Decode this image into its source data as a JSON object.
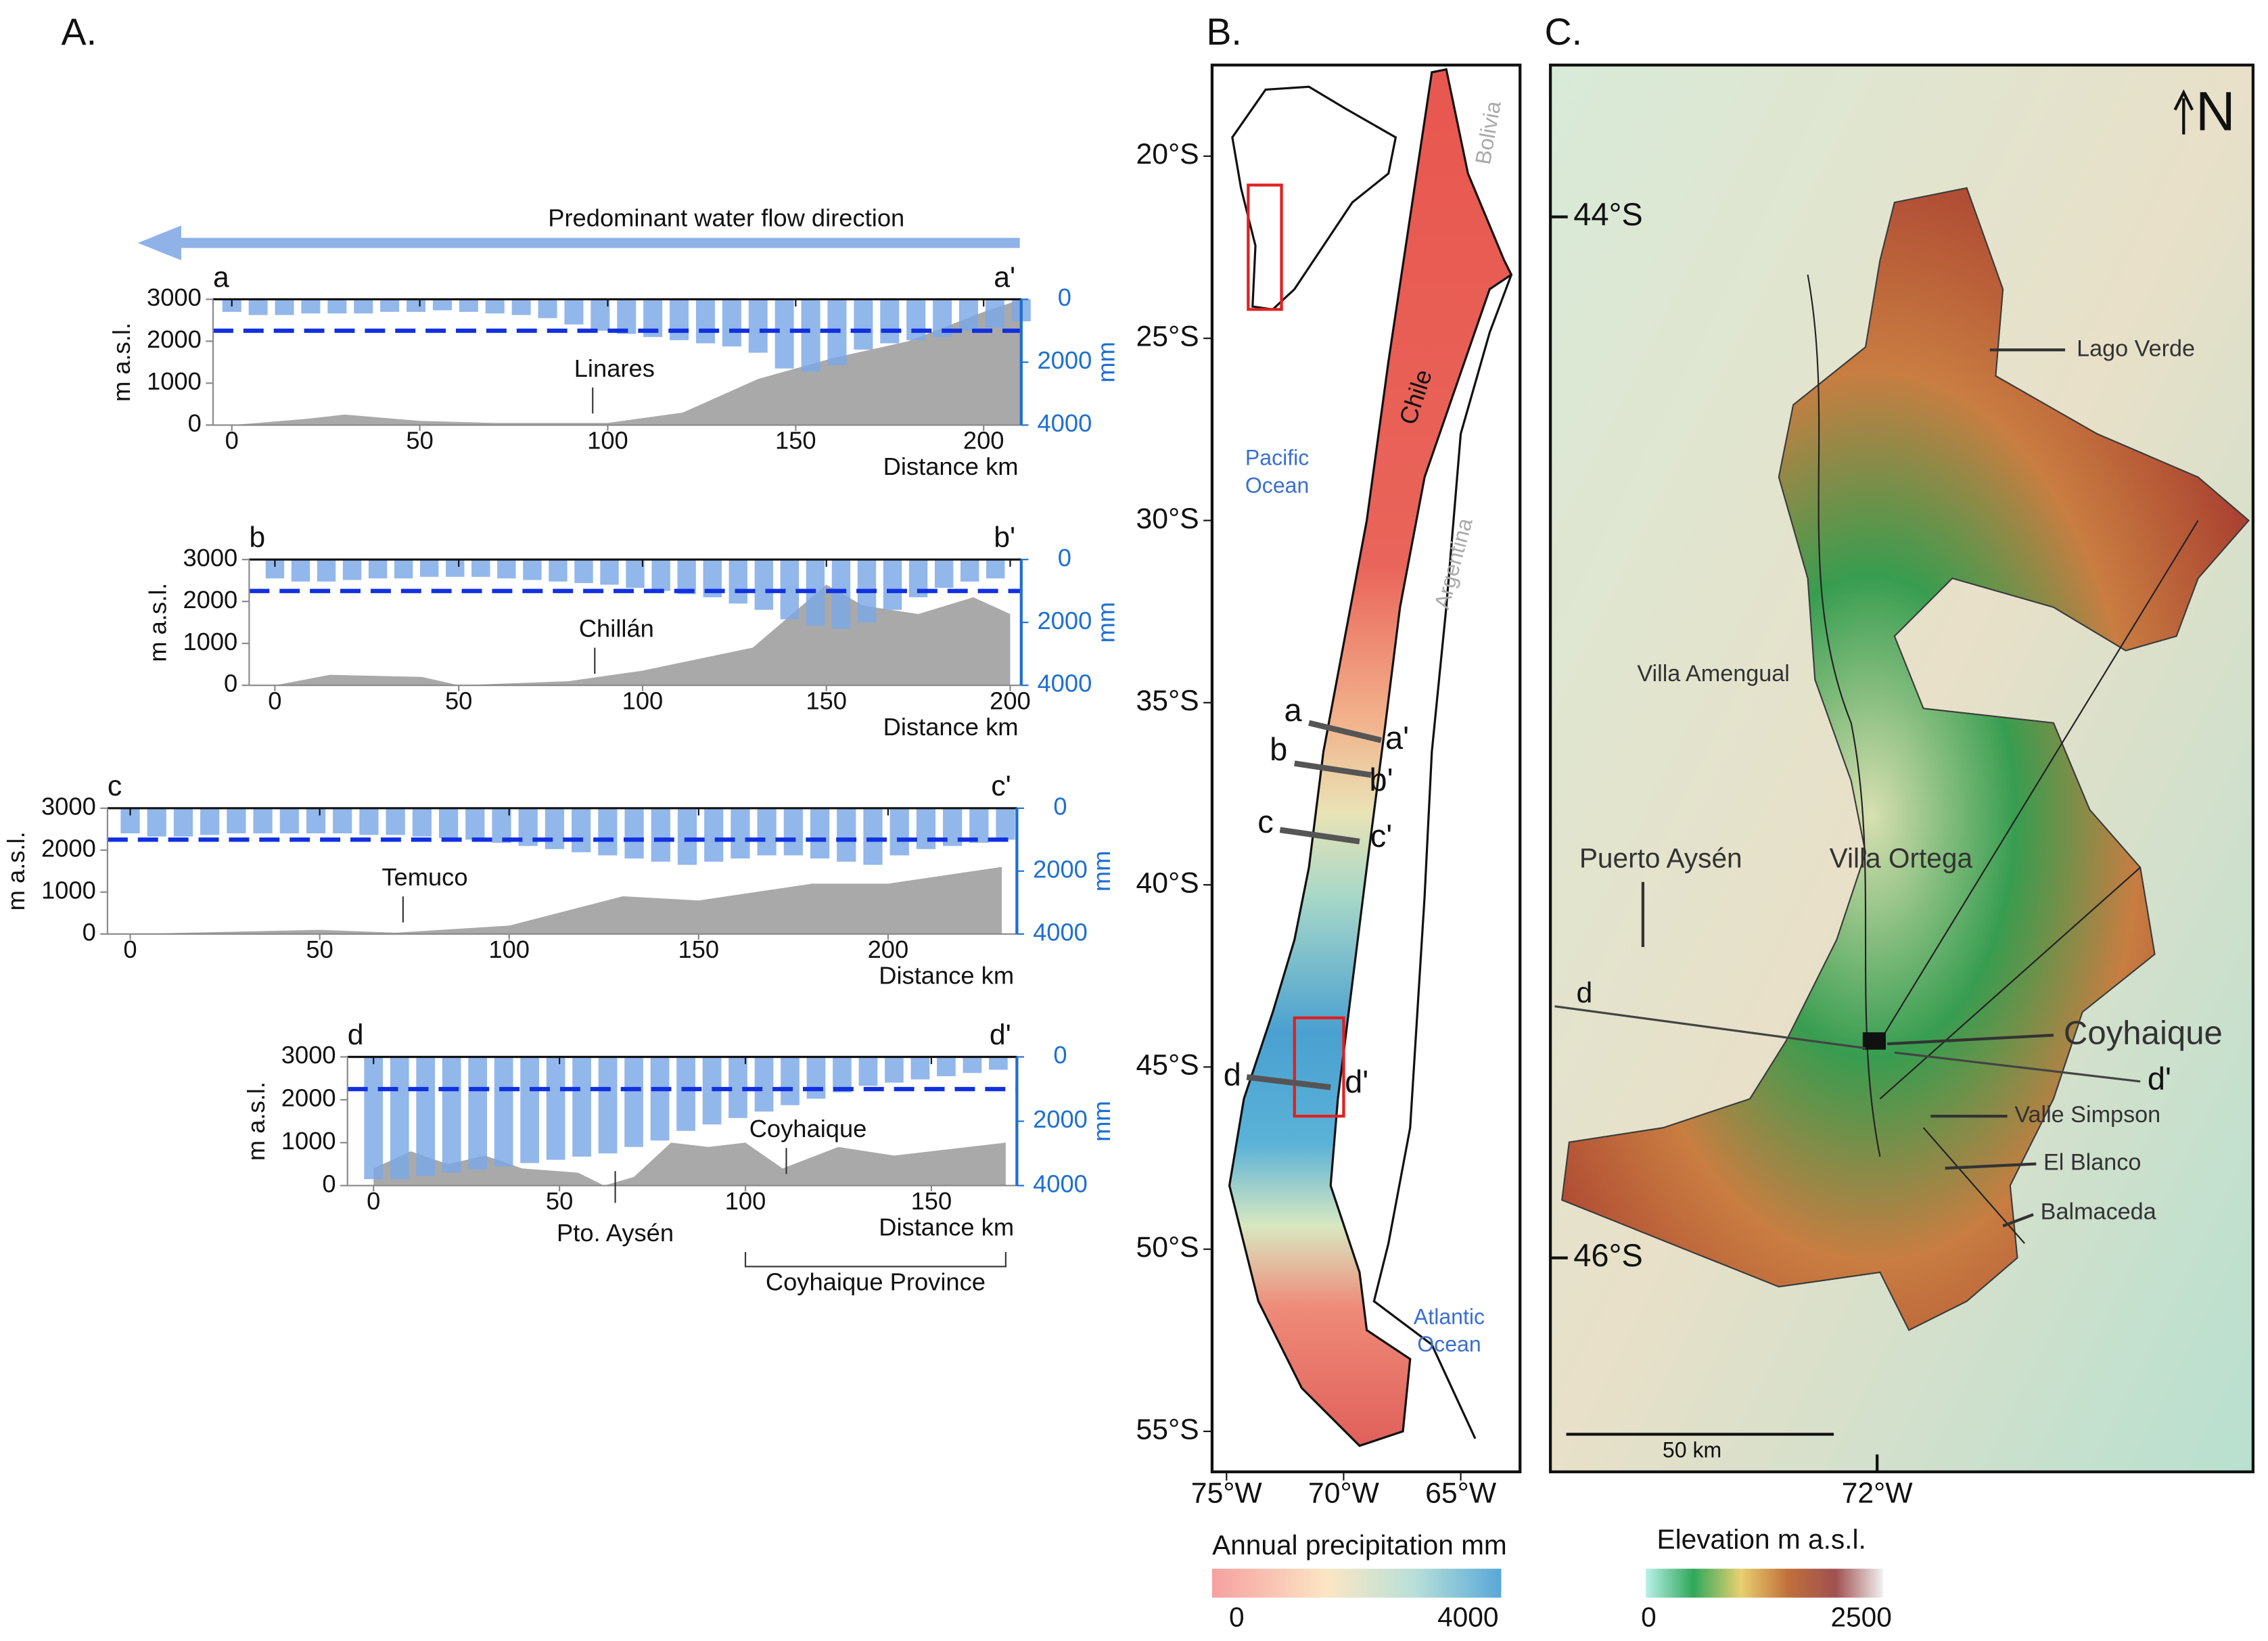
{
  "panel_a_label": "A.",
  "flow_label": "Predominant water flow direction",
  "chart_data": [
    {
      "type": "bar",
      "start_label": "a",
      "end_label": "a'",
      "xlabel": "Distance km",
      "ylabel": "m a.s.l.",
      "y2label": "mm",
      "xlim": [
        -5,
        210
      ],
      "xticks": [
        0,
        50,
        100,
        150,
        200
      ],
      "ylim": [
        0,
        3000
      ],
      "yticks": [
        0,
        1000,
        2000,
        3000
      ],
      "y2lim": [
        4000,
        0
      ],
      "y2ticks": [
        0,
        2000,
        4000
      ],
      "elevation": {
        "color": "#a9a9a9",
        "x": [
          0,
          20,
          30,
          50,
          70,
          100,
          120,
          140,
          160,
          180,
          200,
          210
        ],
        "values": [
          0,
          150,
          250,
          100,
          50,
          50,
          300,
          1100,
          1600,
          2000,
          2700,
          3000
        ]
      },
      "precipitation": {
        "color": "#7aa7e6",
        "axis": "y2",
        "x": [
          0,
          7,
          14,
          21,
          28,
          35,
          42,
          49,
          56,
          63,
          70,
          77,
          84,
          91,
          98,
          105,
          112,
          119,
          126,
          133,
          140,
          147,
          154,
          161,
          168,
          175,
          182,
          189,
          196,
          203,
          210
        ],
        "values": [
          400,
          500,
          500,
          450,
          450,
          450,
          400,
          400,
          350,
          400,
          450,
          500,
          600,
          800,
          1000,
          1100,
          1200,
          1300,
          1400,
          1500,
          1700,
          2200,
          2300,
          2100,
          1600,
          1400,
          1300,
          1200,
          1000,
          900,
          700
        ]
      },
      "mean_precipitation": 1000,
      "mean_color": "#1030e0",
      "annotations": [
        {
          "text": "Linares",
          "x": 96,
          "side": "above"
        }
      ]
    },
    {
      "type": "bar",
      "start_label": "b",
      "end_label": "b'",
      "xlabel": "Distance km",
      "ylabel": "m a.s.l.",
      "y2label": "mm",
      "xlim": [
        -7,
        203
      ],
      "xticks": [
        0,
        50,
        100,
        150,
        200
      ],
      "ylim": [
        0,
        3000
      ],
      "yticks": [
        0,
        1000,
        2000,
        3000
      ],
      "y2lim": [
        4000,
        0
      ],
      "y2ticks": [
        0,
        2000,
        4000
      ],
      "elevation": {
        "color": "#a9a9a9",
        "x": [
          0,
          15,
          40,
          50,
          80,
          100,
          130,
          150,
          160,
          175,
          190,
          200
        ],
        "values": [
          0,
          250,
          200,
          0,
          100,
          350,
          900,
          2400,
          1900,
          1700,
          2100,
          1700
        ]
      },
      "precipitation": {
        "color": "#7aa7e6",
        "axis": "y2",
        "x": [
          0,
          7,
          14,
          21,
          28,
          35,
          42,
          49,
          56,
          63,
          70,
          77,
          84,
          91,
          98,
          105,
          112,
          119,
          126,
          133,
          140,
          147,
          154,
          161,
          168,
          175,
          182,
          189,
          196
        ],
        "values": [
          600,
          700,
          700,
          650,
          600,
          600,
          550,
          550,
          550,
          600,
          650,
          700,
          750,
          800,
          900,
          1000,
          1100,
          1200,
          1400,
          1600,
          1900,
          2100,
          2200,
          2000,
          1600,
          1200,
          900,
          700,
          600
        ]
      },
      "mean_precipitation": 1000,
      "mean_color": "#1030e0",
      "annotations": [
        {
          "text": "Chillán",
          "x": 87,
          "side": "above"
        }
      ]
    },
    {
      "type": "bar",
      "start_label": "c",
      "end_label": "c'",
      "xlabel": "Distance km",
      "ylabel": "m a.s.l.",
      "y2label": "mm",
      "xlim": [
        -6,
        234
      ],
      "xticks": [
        0,
        50,
        100,
        150,
        200
      ],
      "ylim": [
        0,
        3000
      ],
      "yticks": [
        0,
        1000,
        2000,
        3000
      ],
      "y2lim": [
        4000,
        0
      ],
      "y2ticks": [
        0,
        2000,
        4000
      ],
      "elevation": {
        "color": "#a9a9a9",
        "x": [
          0,
          50,
          70,
          100,
          130,
          150,
          180,
          200,
          230
        ],
        "values": [
          0,
          100,
          30,
          200,
          900,
          800,
          1200,
          1200,
          1600
        ]
      },
      "precipitation": {
        "color": "#7aa7e6",
        "axis": "y2",
        "x": [
          0,
          7,
          14,
          21,
          28,
          35,
          42,
          49,
          56,
          63,
          70,
          77,
          84,
          91,
          98,
          105,
          112,
          119,
          126,
          133,
          140,
          147,
          154,
          161,
          168,
          175,
          182,
          189,
          196,
          203,
          210,
          217,
          224,
          231
        ],
        "values": [
          800,
          900,
          900,
          850,
          800,
          800,
          800,
          800,
          800,
          850,
          850,
          900,
          950,
          1000,
          1100,
          1200,
          1300,
          1400,
          1500,
          1600,
          1700,
          1800,
          1700,
          1600,
          1500,
          1500,
          1600,
          1700,
          1800,
          1500,
          1300,
          1200,
          1100,
          1000
        ]
      },
      "mean_precipitation": 1000,
      "mean_color": "#1030e0",
      "annotations": [
        {
          "text": "Temuco",
          "x": 72,
          "side": "above"
        }
      ]
    },
    {
      "type": "bar",
      "start_label": "d",
      "end_label": "d'",
      "xlabel": "Distance km",
      "ylabel": "m a.s.l.",
      "y2label": "mm",
      "xlim": [
        -7,
        173
      ],
      "xticks": [
        0,
        50,
        100,
        150
      ],
      "ylim": [
        0,
        3000
      ],
      "yticks": [
        0,
        1000,
        2000,
        3000
      ],
      "y2lim": [
        4000,
        0
      ],
      "y2ticks": [
        0,
        2000,
        4000
      ],
      "elevation": {
        "color": "#a9a9a9",
        "x": [
          0,
          10,
          20,
          30,
          40,
          55,
          62,
          70,
          80,
          90,
          100,
          110,
          125,
          140,
          170
        ],
        "values": [
          400,
          800,
          500,
          700,
          400,
          300,
          0,
          200,
          1000,
          900,
          1000,
          400,
          900,
          700,
          1000
        ]
      },
      "precipitation": {
        "color": "#7aa7e6",
        "axis": "y2",
        "x": [
          0,
          7,
          14,
          21,
          28,
          35,
          42,
          49,
          56,
          63,
          70,
          77,
          84,
          91,
          98,
          105,
          112,
          119,
          126,
          133,
          140,
          147,
          154,
          161,
          168
        ],
        "values": [
          3800,
          3800,
          3700,
          3600,
          3500,
          3400,
          3300,
          3200,
          3100,
          3000,
          2800,
          2600,
          2300,
          2100,
          1900,
          1700,
          1500,
          1300,
          1100,
          900,
          800,
          700,
          600,
          500,
          400
        ]
      },
      "mean_precipitation": 1000,
      "mean_color": "#1030e0",
      "annotations": [
        {
          "text": "Coyhaique",
          "x": 111,
          "side": "above"
        },
        {
          "text": "Pto. Aysén",
          "x": 65,
          "side": "below"
        }
      ],
      "bracket": {
        "text": "Coyhaique Province",
        "from": 100,
        "to": 170
      }
    }
  ],
  "map_b": {
    "label": "B.",
    "lat_ticks": [
      {
        "value": 20,
        "label": "20°S"
      },
      {
        "value": 25,
        "label": "25°S"
      },
      {
        "value": 30,
        "label": "30°S"
      },
      {
        "value": 35,
        "label": "35°S"
      },
      {
        "value": 40,
        "label": "40°S"
      },
      {
        "value": 45,
        "label": "45°S"
      },
      {
        "value": 50,
        "label": "50°S"
      },
      {
        "value": 55,
        "label": "55°S"
      }
    ],
    "lon_ticks": [
      {
        "value": 75,
        "label": "75°W"
      },
      {
        "value": 70,
        "label": "70°W"
      },
      {
        "value": 65,
        "label": "65°W"
      }
    ],
    "texts": {
      "chile": "Chile",
      "bolivia": "Bolivia",
      "argentina": "Argentina",
      "pacific": "Pacific\nOcean",
      "atlantic": "Atlantic\nOcean"
    },
    "profile_labels": [
      "a",
      "a'",
      "b",
      "b'",
      "c",
      "c'",
      "d",
      "d'"
    ],
    "colorbar": {
      "title": "Annual precipitation mm",
      "lim": [
        0,
        4000
      ],
      "ticks": [
        0,
        4000
      ]
    }
  },
  "map_c": {
    "label": "C.",
    "north": "N",
    "lat_ticks": [
      {
        "value": 44,
        "label": "44°S"
      },
      {
        "value": 46,
        "label": "46°S"
      }
    ],
    "lon_ticks": [
      {
        "value": 72,
        "label": "72°W"
      }
    ],
    "places": [
      "Lago Verde",
      "Villa Amengual",
      "Puerto Aysén",
      "Villa Ortega",
      "Coyhaique",
      "Valle Simpson",
      "El Blanco",
      "Balmaceda"
    ],
    "profile_labels": [
      "d",
      "d'"
    ],
    "scale": "50 km",
    "colorbar": {
      "title": "Elevation m a.s.l.",
      "lim": [
        0,
        2500
      ],
      "ticks": [
        0,
        2500
      ]
    }
  }
}
